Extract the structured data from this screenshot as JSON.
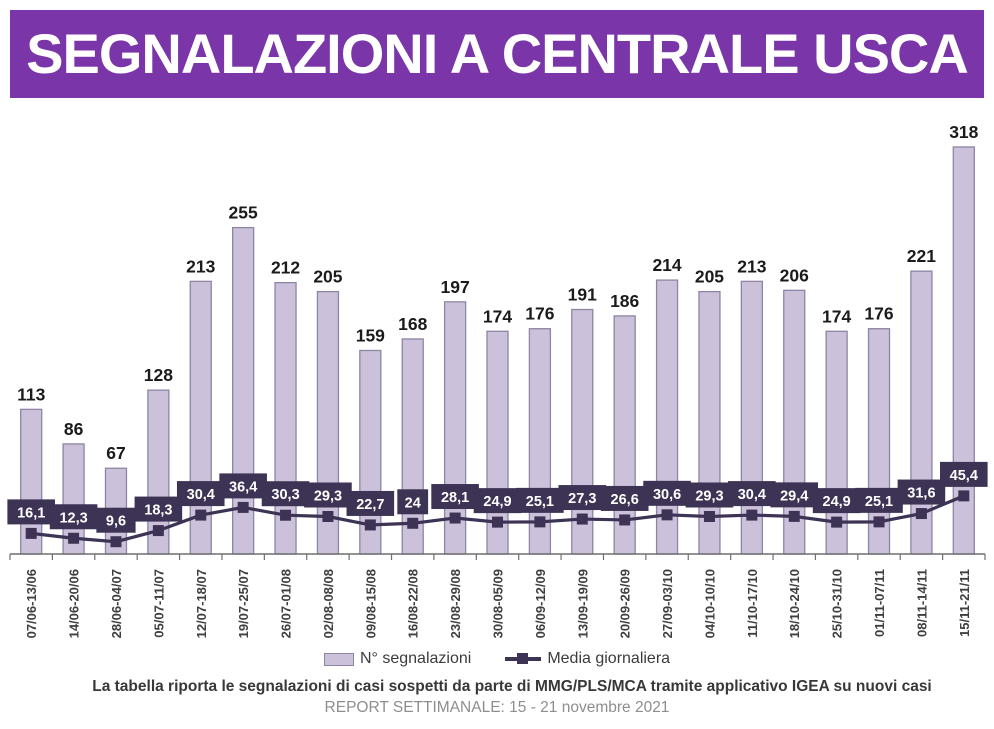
{
  "title": "SEGNALAZIONI A CENTRALE USCA",
  "legend": {
    "bar_label": "N° segnalazioni",
    "line_label": "Media giornaliera"
  },
  "footer": {
    "caption": "La tabella riporta le segnalazioni di casi sospetti da parte di MMG/PLS/MCA tramite applicativo IGEA su nuovi casi",
    "report_period": "REPORT SETTIMANALE: 15 - 21 novembre 2021"
  },
  "colors": {
    "banner_bg": "#7A35A8",
    "banner_text": "#FFFFFF",
    "bar_fill": "#CCC1DA",
    "bar_stroke": "#8C85A3",
    "dark_purple": "#3D3355",
    "badge_text": "#FFFFFF",
    "bar_label": "#1B1B1B",
    "axis": "#6F6F6F",
    "x_label": "#3F3F3F",
    "legend_text": "#3C3C3C",
    "caption_text": "#383838",
    "period_text": "#8E8E8E"
  },
  "chart_data": {
    "type": "combo",
    "title": "SEGNALAZIONI A CENTRALE USCA",
    "xlabel": "",
    "ylabel": "",
    "ylim": [
      0,
      330
    ],
    "grid": false,
    "legend_position": "bottom",
    "categories": [
      "07/06-13/06",
      "14/06-20/06",
      "28/06-04/07",
      "05/07-11/07",
      "12/07-18/07",
      "19/07-25/07",
      "26/07-01/08",
      "02/08-08/08",
      "09/08-15/08",
      "16/08-22/08",
      "23/08-29/08",
      "30/08-05/09",
      "06/09-12/09",
      "13/09-19/09",
      "20/09-26/09",
      "27/09-03/10",
      "04/10-10/10",
      "11/10-17/10",
      "18/10-24/10",
      "25/10-31/10",
      "01/11-07/11",
      "08/11-14/11",
      "15/11-21/11"
    ],
    "series": [
      {
        "name": "N° segnalazioni",
        "type": "bar",
        "values": [
          113,
          86,
          67,
          128,
          213,
          255,
          212,
          205,
          159,
          168,
          197,
          174,
          176,
          191,
          186,
          214,
          205,
          213,
          206,
          174,
          176,
          221,
          318
        ],
        "labels": [
          "113",
          "86",
          "67",
          "128",
          "213",
          "255",
          "212",
          "205",
          "159",
          "168",
          "197",
          "174",
          "176",
          "191",
          "186",
          "214",
          "205",
          "213",
          "206",
          "174",
          "176",
          "221",
          "318"
        ]
      },
      {
        "name": "Media giornaliera",
        "type": "line",
        "values": [
          16.1,
          12.3,
          9.6,
          18.3,
          30.4,
          36.4,
          30.3,
          29.3,
          22.7,
          24,
          28.1,
          24.9,
          25.1,
          27.3,
          26.6,
          30.6,
          29.3,
          30.4,
          29.4,
          24.9,
          25.1,
          31.6,
          45.4
        ],
        "labels": [
          "16,1",
          "12,3",
          "9,6",
          "18,3",
          "30,4",
          "36,4",
          "30,3",
          "29,3",
          "22,7",
          "24",
          "28,1",
          "24,9",
          "25,1",
          "27,3",
          "26,6",
          "30,6",
          "29,3",
          "30,4",
          "29,4",
          "24,9",
          "25,1",
          "31,6",
          "45,4"
        ]
      }
    ]
  }
}
